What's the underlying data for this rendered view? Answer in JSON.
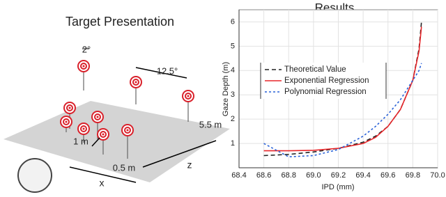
{
  "diagram": {
    "title": "Target Presentation",
    "labels": [
      "2°",
      "12.5°",
      "5.5 m",
      "1 m",
      "0.5 m",
      "z",
      "x"
    ]
  },
  "chart_data": {
    "type": "line",
    "title": "Results",
    "x_label": "IPD (mm)",
    "y_label": "Gaze Depth (m)",
    "x": [
      68.6,
      68.8,
      69.0,
      69.2,
      69.4,
      69.5,
      69.6,
      69.7,
      69.8,
      69.85,
      69.87
    ],
    "series": [
      {
        "name": "Theoretical Value",
        "color": "#222222",
        "dash": "6,4",
        "values": [
          0.5,
          0.55,
          0.65,
          0.8,
          1.05,
          1.3,
          1.7,
          2.4,
          3.6,
          4.9,
          6.0
        ]
      },
      {
        "name": "Exponential Regression",
        "color": "#e8262a",
        "dash": "none",
        "values": [
          0.7,
          0.7,
          0.72,
          0.8,
          1.0,
          1.25,
          1.7,
          2.4,
          3.6,
          4.8,
          5.8
        ]
      },
      {
        "name": "Polynomial Regression",
        "color": "#2a62d8",
        "dash": "3,3",
        "values": [
          1.0,
          0.45,
          0.5,
          0.75,
          1.3,
          1.7,
          2.2,
          2.8,
          3.6,
          4.0,
          4.3
        ]
      }
    ],
    "xlim": [
      68.4,
      70.0
    ],
    "xticks": [
      68.4,
      68.6,
      68.8,
      {
        "value": 69,
        "label": "69.0"
      },
      69.2,
      69.4,
      69.6,
      69.8,
      {
        "value": 70,
        "label": "70.0"
      }
    ],
    "ylim": [
      0,
      6.5
    ],
    "yticks": [
      1,
      2,
      3,
      4,
      5,
      6
    ],
    "grid": true
  }
}
